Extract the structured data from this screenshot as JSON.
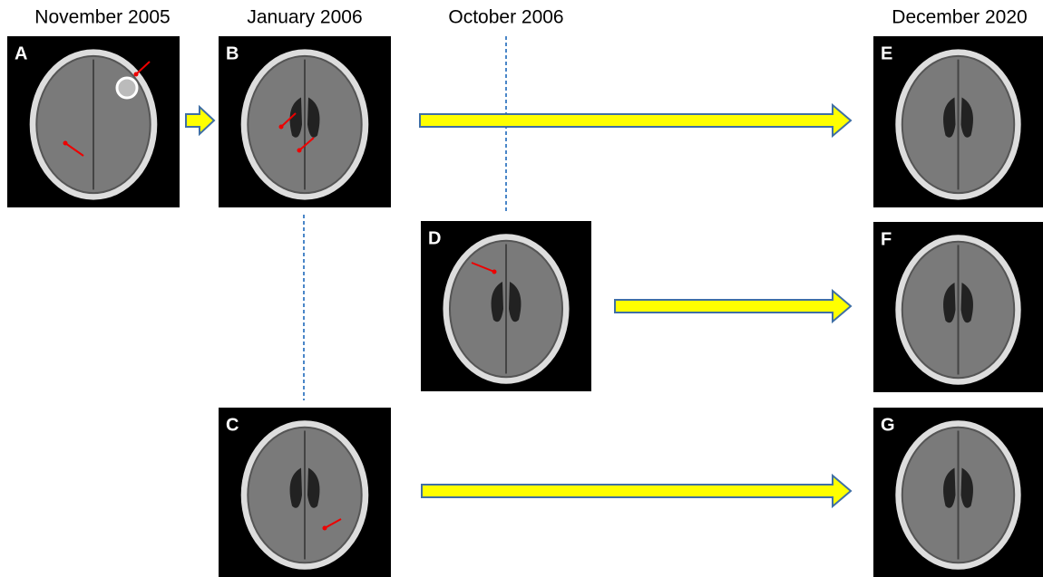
{
  "headers": [
    "November 2005",
    "January 2006",
    "October 2006",
    "December 2020"
  ],
  "panels": [
    {
      "label": "A"
    },
    {
      "label": "B"
    },
    {
      "label": "C"
    },
    {
      "label": "D"
    },
    {
      "label": "E"
    },
    {
      "label": "F"
    },
    {
      "label": "G"
    }
  ]
}
